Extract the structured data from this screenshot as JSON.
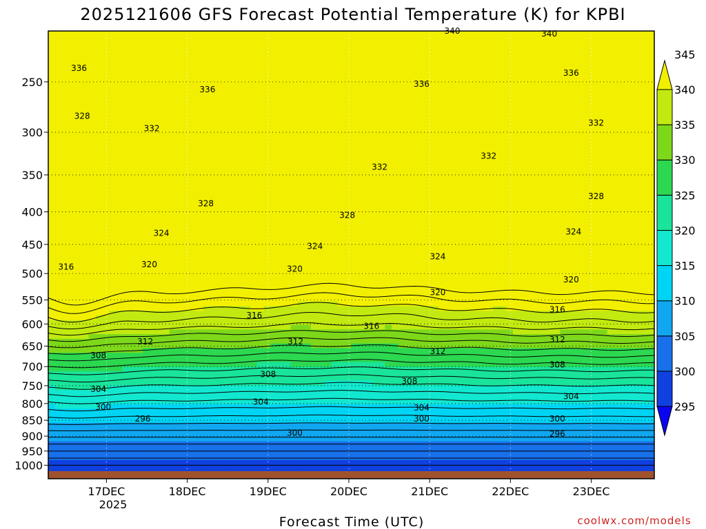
{
  "chart_data": {
    "type": "contour",
    "title": "2025121606 GFS Forecast Potential Temperature (K) for KPBI",
    "xlabel": "Forecast Time (UTC)",
    "ylabel": "",
    "credit": "coolwx.com/models",
    "x_tick_labels": [
      "17DEC",
      "18DEC",
      "19DEC",
      "20DEC",
      "21DEC",
      "22DEC",
      "23DEC"
    ],
    "x_tick_year": "2025",
    "x_days": [
      0.72,
      1.72,
      2.72,
      3.72,
      4.72,
      5.72,
      6.72
    ],
    "xlim": [
      0,
      7.5
    ],
    "pressure_levels": [
      250,
      300,
      350,
      400,
      450,
      500,
      550,
      600,
      650,
      700,
      750,
      800,
      850,
      900,
      950,
      1000
    ],
    "y_tick_labels": [
      "250",
      "300",
      "350",
      "400",
      "450",
      "500",
      "550",
      "600",
      "650",
      "700",
      "750",
      "800",
      "850",
      "900",
      "950",
      "1000"
    ],
    "colorbar_levels": [
      "295",
      "300",
      "305",
      "310",
      "315",
      "320",
      "325",
      "330",
      "335",
      "340",
      "345"
    ],
    "colorbar_colors": [
      "#0a05f0",
      "#1040e0",
      "#1870ea",
      "#11a6f0",
      "#00d4f4",
      "#12e8d0",
      "#19e49a",
      "#2cd850",
      "#7ed81a",
      "#c2ea10",
      "#f2f000"
    ],
    "contour_labels": [
      {
        "text": "340",
        "day": 5.0,
        "p": 208
      },
      {
        "text": "340",
        "day": 6.2,
        "p": 210
      },
      {
        "text": "336",
        "day": 0.38,
        "p": 238
      },
      {
        "text": "336",
        "day": 1.97,
        "p": 257
      },
      {
        "text": "336",
        "day": 4.62,
        "p": 252
      },
      {
        "text": "336",
        "day": 6.47,
        "p": 242
      },
      {
        "text": "328",
        "day": 0.42,
        "p": 283
      },
      {
        "text": "332",
        "day": 1.28,
        "p": 296
      },
      {
        "text": "332",
        "day": 4.1,
        "p": 340
      },
      {
        "text": "332",
        "day": 5.45,
        "p": 327
      },
      {
        "text": "332",
        "day": 6.78,
        "p": 290
      },
      {
        "text": "328",
        "day": 1.95,
        "p": 388
      },
      {
        "text": "328",
        "day": 3.7,
        "p": 405
      },
      {
        "text": "328",
        "day": 6.78,
        "p": 378
      },
      {
        "text": "324",
        "day": 1.4,
        "p": 432
      },
      {
        "text": "324",
        "day": 3.3,
        "p": 453
      },
      {
        "text": "324",
        "day": 4.82,
        "p": 470
      },
      {
        "text": "324",
        "day": 6.5,
        "p": 430
      },
      {
        "text": "316",
        "day": 0.22,
        "p": 488
      },
      {
        "text": "320",
        "day": 1.25,
        "p": 484
      },
      {
        "text": "320",
        "day": 3.05,
        "p": 492
      },
      {
        "text": "320",
        "day": 4.82,
        "p": 535
      },
      {
        "text": "320",
        "day": 6.47,
        "p": 511
      },
      {
        "text": "316",
        "day": 2.55,
        "p": 582
      },
      {
        "text": "316",
        "day": 4.0,
        "p": 605
      },
      {
        "text": "316",
        "day": 6.3,
        "p": 570
      },
      {
        "text": "312",
        "day": 1.2,
        "p": 640
      },
      {
        "text": "312",
        "day": 3.06,
        "p": 640
      },
      {
        "text": "312",
        "day": 4.82,
        "p": 662
      },
      {
        "text": "312",
        "day": 6.3,
        "p": 635
      },
      {
        "text": "308",
        "day": 0.62,
        "p": 672
      },
      {
        "text": "308",
        "day": 2.72,
        "p": 720
      },
      {
        "text": "308",
        "day": 4.47,
        "p": 738
      },
      {
        "text": "308",
        "day": 6.3,
        "p": 695
      },
      {
        "text": "304",
        "day": 0.62,
        "p": 760
      },
      {
        "text": "304",
        "day": 2.63,
        "p": 795
      },
      {
        "text": "304",
        "day": 4.62,
        "p": 812
      },
      {
        "text": "304",
        "day": 6.47,
        "p": 780
      },
      {
        "text": "300",
        "day": 0.68,
        "p": 810
      },
      {
        "text": "296",
        "day": 1.17,
        "p": 845
      },
      {
        "text": "300",
        "day": 3.05,
        "p": 890
      },
      {
        "text": "300",
        "day": 4.62,
        "p": 845
      },
      {
        "text": "300",
        "day": 6.3,
        "p": 845
      },
      {
        "text": "296",
        "day": 6.3,
        "p": 893
      }
    ]
  }
}
